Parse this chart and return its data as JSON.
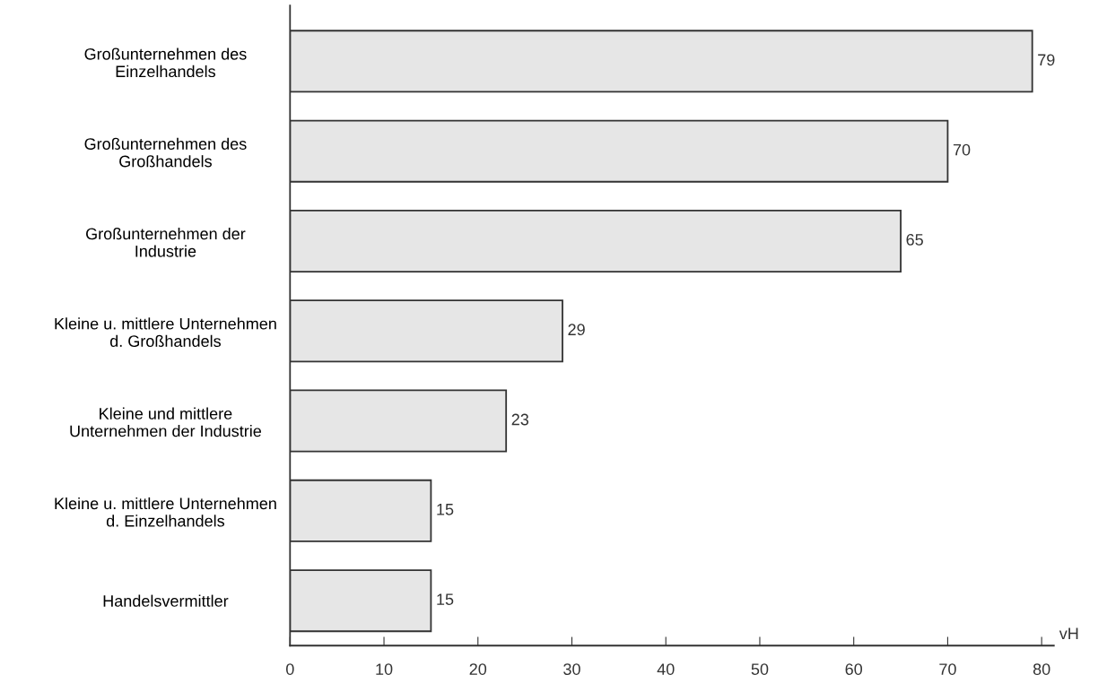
{
  "chart_data": {
    "type": "bar",
    "orientation": "horizontal",
    "categories": [
      "Großunternehmen des\nEinzelhandels",
      "Großunternehmen des\nGroßhandels",
      "Großunternehmen der\nIndustrie",
      "Kleine u. mittlere Unternehmen\nd. Großhandels",
      "Kleine und mittlere\nUnternehmen der Industrie",
      "Kleine u. mittlere Unternehmen\nd. Einzelhandels",
      "Handelsvermittler"
    ],
    "values": [
      79,
      70,
      65,
      29,
      23,
      15,
      15
    ],
    "color": "#e6e6e6",
    "xlim": [
      0,
      81.3
    ],
    "xticks": [
      0,
      10,
      20,
      30,
      40,
      50,
      60,
      70,
      80
    ],
    "xlabel": "vH",
    "data_labels": true,
    "grid": false,
    "legend": false
  }
}
